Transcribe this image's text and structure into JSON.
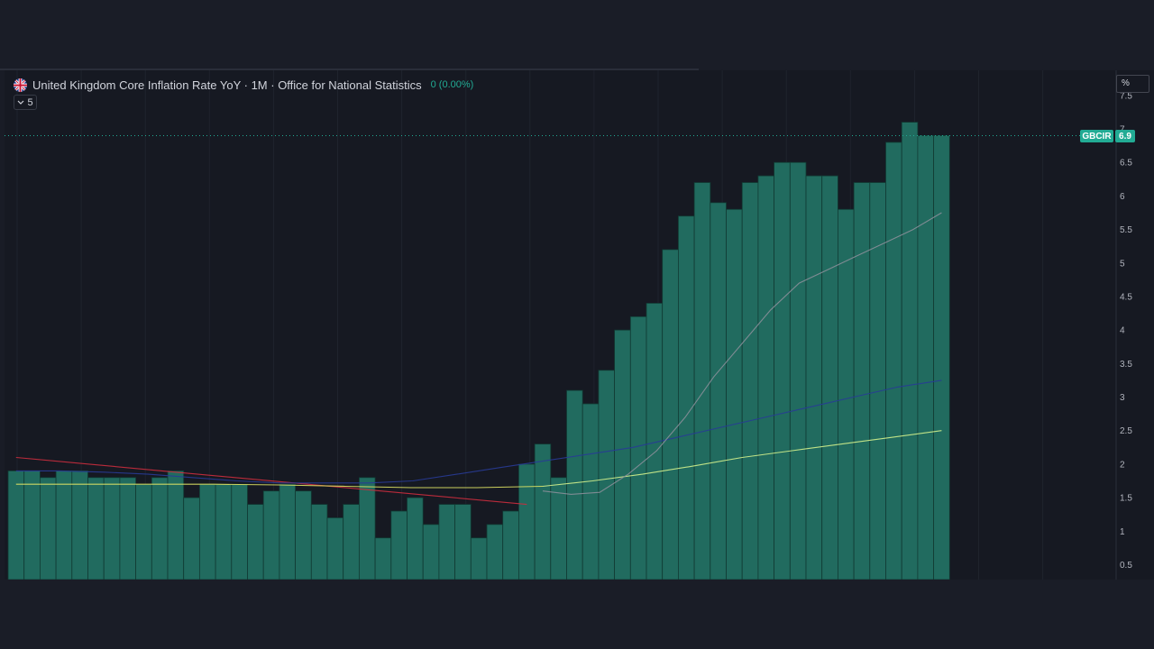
{
  "legend": {
    "title": "United Kingdom Core Inflation Rate YoY · 1M · Office for National Statistics",
    "change": "0 (0.00%)",
    "indicator_count": "5"
  },
  "price_scale": {
    "unit": "%",
    "symbol": "GBCIR",
    "last_value": "6.9"
  },
  "colors": {
    "bar": "#216b5f",
    "bar_border": "#113a33",
    "accent": "#22ab94",
    "ma_red": "#cc2e3e",
    "ma_blue": "#283b96",
    "ma_yellow": "#dfe364",
    "ma_light_green": "#d2f08c",
    "ma_gray": "#8a8f99",
    "ma_teal": "#2a6e8c"
  },
  "chart_data": {
    "type": "bar",
    "ylim": [
      0.3,
      7.5
    ],
    "y_ticks": [
      "0.5",
      "1",
      "1.5",
      "2",
      "2.5",
      "3",
      "3.5",
      "4",
      "4.5",
      "5",
      "5.5",
      "6",
      "6.5",
      "7",
      "7.5"
    ],
    "last_value_line": 6.9,
    "series": [
      {
        "values": [
          1.9,
          1.9,
          1.8,
          1.9,
          1.9,
          1.8,
          1.8,
          1.8,
          1.7,
          1.8,
          1.9,
          1.5,
          1.7,
          1.7,
          1.7,
          1.4,
          1.6,
          1.7,
          1.6,
          1.4,
          1.2,
          1.4,
          1.8,
          0.9,
          1.3,
          1.5,
          1.1,
          1.4,
          1.4,
          0.9,
          1.1,
          1.3,
          2.0,
          2.3,
          1.8,
          3.1,
          2.9,
          3.4,
          4.0,
          4.2,
          4.4,
          5.2,
          5.7,
          6.2,
          5.9,
          5.8,
          6.2,
          6.3,
          6.5,
          6.5,
          6.3,
          6.3,
          5.8,
          6.2,
          6.2,
          6.8,
          7.1,
          6.9,
          6.9
        ]
      }
    ],
    "moving_averages": [
      {
        "color_key": "ma_red",
        "values": [
          2.1,
          2.0,
          1.9,
          1.8,
          1.7,
          1.6,
          1.5,
          1.4
        ]
      },
      {
        "color_key": "ma_blue",
        "values": [
          1.9,
          1.9,
          1.88,
          1.85,
          1.8,
          1.75,
          1.72,
          1.72,
          1.72,
          1.75,
          1.85,
          1.95,
          2.05,
          2.15,
          2.25,
          2.4,
          2.55,
          2.7,
          2.85,
          3.0,
          3.15,
          3.25
        ]
      },
      {
        "color_key": "ma_yellow",
        "values": [
          1.7,
          1.7,
          1.7,
          1.7,
          1.69,
          1.67,
          1.65,
          1.65,
          1.67
        ]
      },
      {
        "color_key": "ma_light_green",
        "values": [
          1.67,
          1.75,
          1.85,
          1.97,
          2.1,
          2.2,
          2.3,
          2.4,
          2.5
        ]
      },
      {
        "color_key": "ma_gray",
        "values": [
          1.6,
          1.55,
          1.58,
          1.85,
          2.2,
          2.7,
          3.3,
          3.8,
          4.3,
          4.7,
          4.9,
          5.1,
          5.3,
          5.5,
          5.75
        ]
      }
    ]
  }
}
